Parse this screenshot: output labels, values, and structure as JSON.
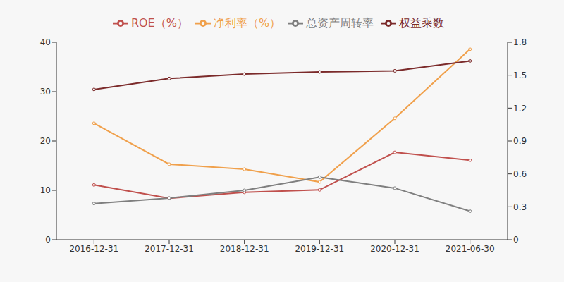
{
  "chart_data": {
    "type": "line",
    "categories": [
      "2016-12-31",
      "2017-12-31",
      "2018-12-31",
      "2019-12-31",
      "2020-12-31",
      "2021-06-30"
    ],
    "series": [
      {
        "name": "ROE（%）",
        "color": "#c0504d",
        "values": [
          11.1,
          8.4,
          9.6,
          10.1,
          17.7,
          16.1
        ],
        "marker": "circle"
      },
      {
        "name": "净利率（%）",
        "color": "#f0a04b",
        "values": [
          23.6,
          15.3,
          14.3,
          11.7,
          24.6,
          38.6
        ],
        "marker": "circle"
      },
      {
        "name": "总资产周转率",
        "color": "#7f7f7f",
        "values": [
          0.33,
          0.38,
          0.45,
          0.57,
          0.47,
          0.26
        ],
        "axis": "y2",
        "marker": "circle"
      },
      {
        "name": "权益乘数",
        "color": "#7b2a2a",
        "values": [
          1.37,
          1.47,
          1.51,
          1.53,
          1.54,
          1.63
        ],
        "axis": "y2",
        "marker": "circle"
      }
    ],
    "ylim": [
      0,
      40
    ],
    "yticks": [
      0,
      10,
      20,
      30,
      40
    ],
    "y2lim": [
      0,
      1.8
    ],
    "y2ticks": [
      0,
      0.3,
      0.6,
      0.9,
      1.2,
      1.5,
      1.8
    ],
    "grid": false,
    "legend": "top"
  }
}
